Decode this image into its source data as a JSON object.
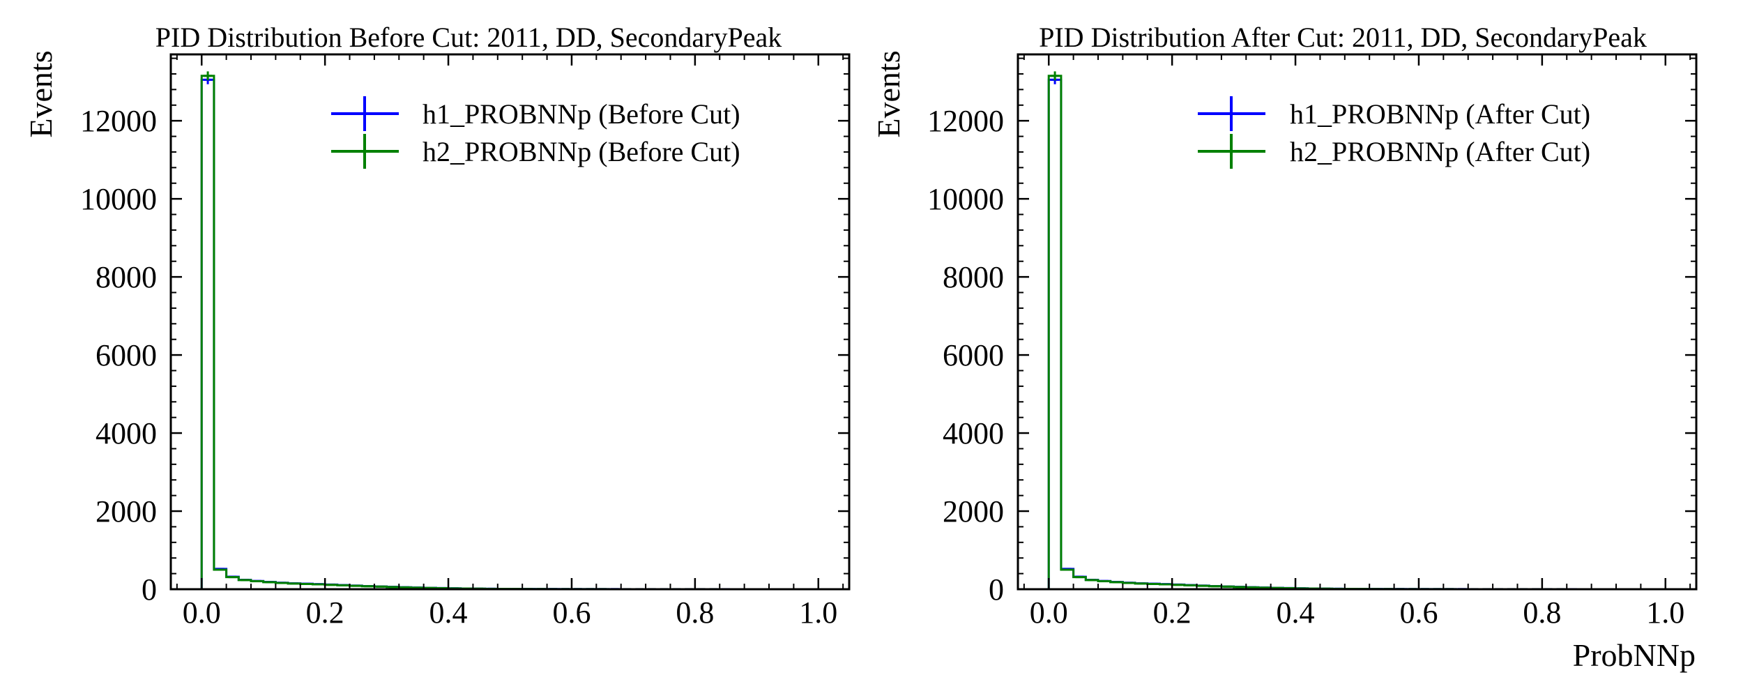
{
  "colors": {
    "h1": "#0000ff",
    "h2": "#008000",
    "axis": "#000000",
    "background": "#ffffff"
  },
  "chart_data": [
    {
      "type": "histogram",
      "title": "PID Distribution Before Cut: 2011, DD, SecondaryPeak",
      "xlabel": "",
      "ylabel": "Events",
      "xlim": [
        -0.05,
        1.05
      ],
      "ylim": [
        0,
        13700
      ],
      "xticks": [
        "0.0",
        "0.2",
        "0.4",
        "0.6",
        "0.8",
        "1.0"
      ],
      "yticks": [
        "0",
        "2000",
        "4000",
        "6000",
        "8000",
        "10000",
        "12000"
      ],
      "legend": {
        "location": "upper right",
        "entries": [
          "h1_PROBNNp (Before Cut)",
          "h2_PROBNNp (Before Cut)"
        ]
      },
      "bin_width": 0.02,
      "series": [
        {
          "name": "h1_PROBNNp (Before Cut)",
          "color": "#0000ff",
          "values": [
            13050,
            520,
            320,
            240,
            210,
            185,
            165,
            150,
            140,
            130,
            118,
            105,
            92,
            80,
            70,
            60,
            50,
            42,
            35,
            28,
            22,
            18,
            14,
            11,
            9,
            7,
            6,
            5,
            4,
            3,
            3,
            2,
            2,
            2,
            1,
            1,
            1,
            1,
            1,
            1,
            1,
            1,
            1,
            0,
            0,
            0,
            0,
            0,
            0,
            0
          ]
        },
        {
          "name": "h2_PROBNNp (Before Cut)",
          "color": "#008000",
          "values": [
            13150,
            500,
            310,
            235,
            205,
            180,
            160,
            145,
            135,
            125,
            112,
            100,
            88,
            76,
            66,
            56,
            47,
            39,
            32,
            26,
            20,
            16,
            13,
            10,
            8,
            6,
            5,
            4,
            3,
            3,
            2,
            2,
            2,
            1,
            1,
            1,
            1,
            1,
            1,
            1,
            1,
            1,
            0,
            0,
            0,
            0,
            0,
            0,
            0,
            0
          ]
        }
      ]
    },
    {
      "type": "histogram",
      "title": "PID Distribution After Cut: 2011, DD, SecondaryPeak",
      "xlabel": "ProbNNp",
      "ylabel": "Events",
      "xlim": [
        -0.05,
        1.05
      ],
      "ylim": [
        0,
        13700
      ],
      "xticks": [
        "0.0",
        "0.2",
        "0.4",
        "0.6",
        "0.8",
        "1.0"
      ],
      "yticks": [
        "0",
        "2000",
        "4000",
        "6000",
        "8000",
        "10000",
        "12000"
      ],
      "legend": {
        "location": "upper right",
        "entries": [
          "h1_PROBNNp (After Cut)",
          "h2_PROBNNp (After Cut)"
        ]
      },
      "bin_width": 0.02,
      "series": [
        {
          "name": "h1_PROBNNp (After Cut)",
          "color": "#0000ff",
          "values": [
            13050,
            520,
            320,
            240,
            210,
            185,
            165,
            150,
            140,
            130,
            118,
            105,
            92,
            80,
            70,
            60,
            50,
            42,
            35,
            28,
            22,
            18,
            14,
            11,
            9,
            7,
            6,
            5,
            4,
            3,
            3,
            2,
            2,
            2,
            1,
            1,
            1,
            1,
            1,
            1,
            1,
            1,
            1,
            0,
            0,
            0,
            0,
            0,
            0,
            0
          ]
        },
        {
          "name": "h2_PROBNNp (After Cut)",
          "color": "#008000",
          "values": [
            13150,
            500,
            310,
            235,
            205,
            180,
            160,
            145,
            135,
            125,
            112,
            100,
            88,
            76,
            66,
            56,
            47,
            39,
            32,
            26,
            20,
            16,
            13,
            10,
            8,
            6,
            5,
            4,
            3,
            3,
            2,
            2,
            2,
            1,
            1,
            1,
            1,
            1,
            1,
            1,
            1,
            1,
            0,
            0,
            0,
            0,
            0,
            0,
            0,
            0
          ]
        }
      ]
    }
  ]
}
